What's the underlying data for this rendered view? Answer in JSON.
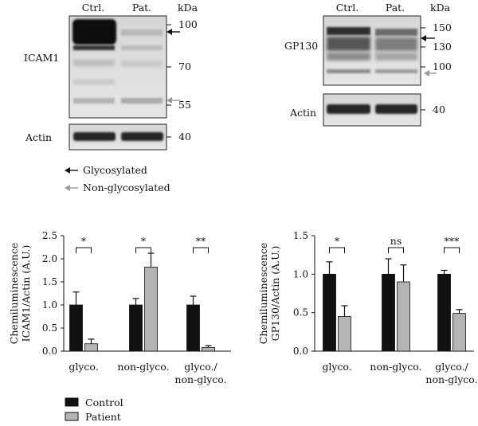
{
  "blots": {
    "left": {
      "lanes": [
        "Ctrl.",
        "Pat."
      ],
      "unit": "kDa",
      "protein": "ICAM1",
      "markers": [
        "100",
        "70",
        "55"
      ],
      "loading_label": "Actin",
      "loading_marker": "40"
    },
    "right": {
      "lanes": [
        "Ctrl.",
        "Pat."
      ],
      "unit": "kDa",
      "protein": "GP130",
      "markers": [
        "150",
        "130",
        "100"
      ],
      "loading_label": "Actin",
      "loading_marker": "40"
    }
  },
  "arrow_legend": {
    "glycosylated": "Glycosylated",
    "non_glycosylated": "Non-glycosylated",
    "colors": {
      "glycosylated": "#111111",
      "non_glycosylated": "#9a9a9a"
    }
  },
  "series_legend": {
    "control": "Control",
    "patient": "Patient",
    "colors": {
      "control": "#111111",
      "patient": "#b4b4b4"
    }
  },
  "chart_data": [
    {
      "type": "bar",
      "title": "",
      "ylabel": "Chemiluminescence ICAM1/Actin (A.U.)",
      "ylabel_lines": [
        "Chemiluminescence",
        "ICAM1/Actin (A.U.)"
      ],
      "xlabel": "",
      "ylim": [
        0,
        2.5
      ],
      "yticks": [
        "0.0",
        "0.5",
        "1.0",
        "1.5",
        "2.0",
        "2.5"
      ],
      "categories": [
        "glyco.",
        "non-glyco.",
        "glyco./\nnon-glyco."
      ],
      "category_lines": [
        [
          "glyco."
        ],
        [
          "non-glyco."
        ],
        [
          "glyco./",
          "non-glyco."
        ]
      ],
      "series": [
        {
          "name": "Control",
          "values": [
            1.0,
            1.0,
            1.0
          ],
          "errors": [
            0.28,
            0.14,
            0.19
          ]
        },
        {
          "name": "Patient",
          "values": [
            0.16,
            1.82,
            0.08
          ],
          "errors": [
            0.1,
            0.3,
            0.04
          ]
        }
      ],
      "significance": [
        "*",
        "*",
        "**"
      ]
    },
    {
      "type": "bar",
      "title": "",
      "ylabel": "Chemiluminescence GP130/Actin (A.U.)",
      "ylabel_lines": [
        "Chemiluminescence",
        "GP130/Actin (A.U.)"
      ],
      "xlabel": "",
      "ylim": [
        0,
        1.5
      ],
      "yticks": [
        "0.0",
        "0.5",
        "1.0",
        "1.5"
      ],
      "categories": [
        "glyco.",
        "non-glyco.",
        "glyco./\nnon-glyco."
      ],
      "category_lines": [
        [
          "glyco."
        ],
        [
          "non-glyco."
        ],
        [
          "glyco./",
          "non-glyco."
        ]
      ],
      "series": [
        {
          "name": "Control",
          "values": [
            1.0,
            1.0,
            1.0
          ],
          "errors": [
            0.16,
            0.2,
            0.05
          ]
        },
        {
          "name": "Patient",
          "values": [
            0.45,
            0.9,
            0.49
          ],
          "errors": [
            0.14,
            0.22,
            0.05
          ]
        }
      ],
      "significance": [
        "*",
        "ns",
        "***"
      ]
    }
  ]
}
